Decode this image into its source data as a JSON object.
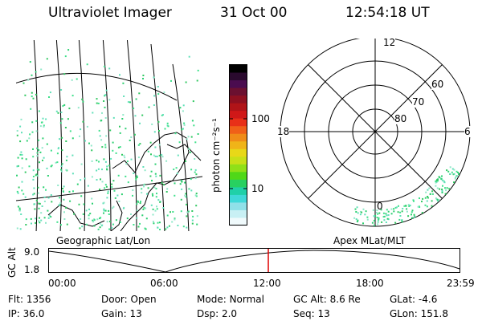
{
  "header": {
    "title": "Ultraviolet Imager",
    "date": "31 Oct 00",
    "time": "12:54:18 UT"
  },
  "colorbar": {
    "unit_label": "photon cm⁻²s⁻¹",
    "ticks": [
      "100",
      "10"
    ],
    "colors": [
      "#000000",
      "#2a0a2e",
      "#4a0c4f",
      "#6b1030",
      "#8e1020",
      "#b01418",
      "#d01818",
      "#e83018",
      "#f06018",
      "#f08c18",
      "#f0b418",
      "#e8d818",
      "#c8e018",
      "#90e018",
      "#50d818",
      "#28d060",
      "#20d0a8",
      "#40d8d8",
      "#90e0e8",
      "#c8f0f4",
      "#f0fafc"
    ]
  },
  "map": {
    "label": "Geographic Lat/Lon"
  },
  "polar": {
    "label": "Apex MLat/MLT",
    "mlt_labels": {
      "top": "12",
      "left": "18",
      "right": "6",
      "bottom": "0"
    },
    "lat_labels": [
      "60",
      "70",
      "80"
    ]
  },
  "timeline": {
    "axis_label": "GC Alt",
    "y_ticks": [
      "9.0",
      "1.8"
    ],
    "x_ticks": [
      "00:00",
      "06:00",
      "12:00",
      "18:00",
      "23:59"
    ],
    "marker_time": "12:54"
  },
  "info": [
    {
      "label": "Flt:",
      "value": "1356"
    },
    {
      "label": "IP:",
      "value": "36.0"
    },
    {
      "label": "Door:",
      "value": "Open"
    },
    {
      "label": "Gain:",
      "value": "13"
    },
    {
      "label": "Mode:",
      "value": "Normal"
    },
    {
      "label": "Dsp:",
      "value": "2.0"
    },
    {
      "label": "GC Alt:",
      "value": "8.6 Re"
    },
    {
      "label": "Seq:",
      "value": "13"
    },
    {
      "label": "GLat:",
      "value": "-4.6"
    },
    {
      "label": "GLon:",
      "value": "151.8"
    }
  ]
}
